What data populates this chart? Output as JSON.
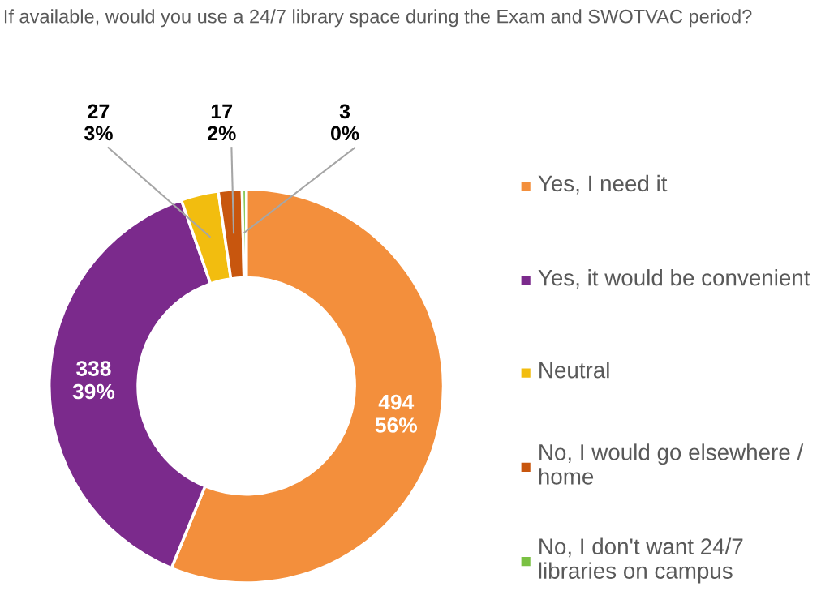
{
  "chart_data": {
    "type": "donut",
    "title": "If available, would you use a 24/7 library space during the Exam and SWOTVAC period?",
    "categories": [
      "Yes, I need it",
      "Yes, it would be convenient",
      "Neutral",
      "No, I would go elsewhere / home",
      "No, I don't want 24/7 libraries on campus"
    ],
    "values": [
      494,
      338,
      27,
      17,
      3
    ],
    "colors": [
      "#f38f3c",
      "#7b2a8c",
      "#f2bd0f",
      "#c8560e",
      "#7ac143"
    ],
    "value_labels": [
      "494\n56%",
      "338\n39%",
      "27\n3%",
      "17\n2%",
      "3\n0%"
    ],
    "legend": "right"
  }
}
